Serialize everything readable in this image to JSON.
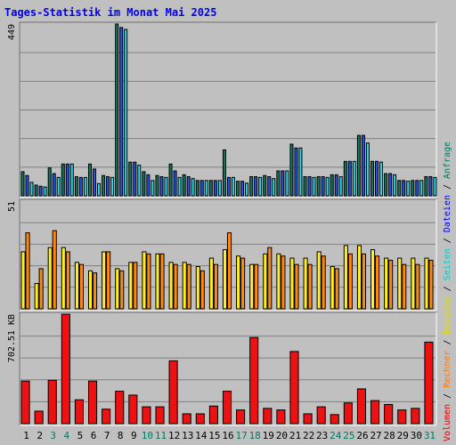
{
  "title": "Tages-Statistik im Monat Mai 2025",
  "panels": {
    "top": {
      "scale_label": "449"
    },
    "middle": {
      "scale_label": "51"
    },
    "bottom": {
      "scale_label": "702.51 KB"
    }
  },
  "side_legend": {
    "separator": " / ",
    "items": [
      {
        "label": "Volumen",
        "color": "#dd0000"
      },
      {
        "label": "Rechner",
        "color": "#ff7700"
      },
      {
        "label": "Besuche",
        "color": "#dddd00"
      },
      {
        "label": "Seiten",
        "color": "#00cccc"
      },
      {
        "label": "Dateien",
        "color": "#0000ee"
      },
      {
        "label": "Anfragen",
        "color": "#007766"
      }
    ]
  },
  "colors": {
    "anfragen": "#117a63",
    "dateien": "#2255ee",
    "seiten": "#22ddee",
    "besuche": "#ffee22",
    "rechner": "#ff8811",
    "volumen": "#ee1111",
    "weekend_day": "#007766",
    "weekday": "#000000"
  },
  "chart_data": {
    "type": "bar",
    "title": "Tages-Statistik im Monat Mai 2025",
    "categories": [
      "1",
      "2",
      "3",
      "4",
      "5",
      "6",
      "7",
      "8",
      "9",
      "10",
      "11",
      "12",
      "13",
      "14",
      "15",
      "16",
      "17",
      "18",
      "19",
      "20",
      "21",
      "22",
      "23",
      "24",
      "25",
      "26",
      "27",
      "28",
      "29",
      "30",
      "31"
    ],
    "weekend_days": [
      "3",
      "4",
      "10",
      "11",
      "17",
      "18",
      "24",
      "25",
      "31"
    ],
    "top": {
      "ylim": [
        0,
        449
      ],
      "series": [
        {
          "name": "Anfragen",
          "values": [
            63,
            28,
            73,
            83,
            50,
            83,
            53,
            449,
            88,
            63,
            53,
            83,
            55,
            40,
            40,
            120,
            38,
            50,
            53,
            65,
            135,
            50,
            50,
            55,
            90,
            158,
            90,
            58,
            40,
            40,
            50
          ]
        },
        {
          "name": "Dateien",
          "values": [
            53,
            25,
            58,
            83,
            48,
            70,
            50,
            440,
            88,
            55,
            50,
            65,
            50,
            40,
            40,
            48,
            38,
            50,
            50,
            65,
            125,
            50,
            50,
            55,
            90,
            158,
            90,
            58,
            40,
            40,
            50
          ]
        },
        {
          "name": "Seiten",
          "values": [
            35,
            23,
            48,
            83,
            48,
            32,
            48,
            435,
            80,
            40,
            48,
            48,
            45,
            40,
            40,
            48,
            33,
            48,
            45,
            65,
            125,
            48,
            48,
            50,
            90,
            138,
            88,
            55,
            38,
            40,
            48
          ]
        }
      ]
    },
    "middle": {
      "ylim": [
        0,
        51
      ],
      "series": [
        {
          "name": "Besuche",
          "values": [
            27,
            12,
            29,
            29,
            22,
            18,
            27,
            19,
            22,
            27,
            26,
            22,
            22,
            20,
            24,
            28,
            25,
            21,
            26,
            26,
            24,
            24,
            27,
            20,
            30,
            30,
            28,
            24,
            24,
            24,
            24
          ]
        },
        {
          "name": "Rechner",
          "values": [
            36,
            19,
            37,
            27,
            21,
            17,
            27,
            18,
            22,
            26,
            26,
            21,
            21,
            18,
            21,
            36,
            24,
            21,
            29,
            25,
            21,
            21,
            25,
            19,
            26,
            26,
            25,
            23,
            21,
            21,
            23
          ]
        }
      ]
    },
    "bottom": {
      "ylim": [
        0,
        702.51
      ],
      "unit": "KB",
      "series": [
        {
          "name": "Volumen",
          "values": [
            273,
            80,
            278,
            702,
            153,
            273,
            93,
            208,
            183,
            108,
            108,
            403,
            63,
            63,
            113,
            208,
            88,
            553,
            98,
            88,
            463,
            63,
            108,
            58,
            133,
            223,
            148,
            123,
            88,
            98,
            523
          ]
        }
      ]
    }
  }
}
